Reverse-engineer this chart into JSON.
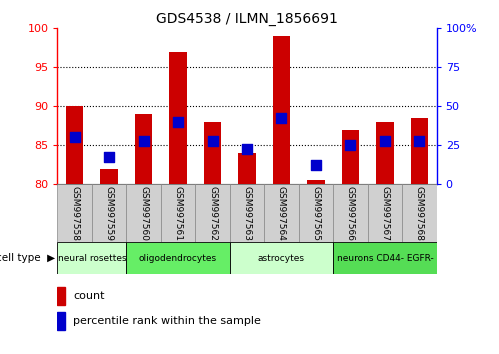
{
  "title": "GDS4538 / ILMN_1856691",
  "samples": [
    "GSM997558",
    "GSM997559",
    "GSM997560",
    "GSM997561",
    "GSM997562",
    "GSM997563",
    "GSM997564",
    "GSM997565",
    "GSM997566",
    "GSM997567",
    "GSM997568"
  ],
  "count_values": [
    90,
    82,
    89,
    97,
    88,
    84,
    99,
    80.5,
    87,
    88,
    88.5
  ],
  "percentile_values": [
    86,
    83.5,
    85.5,
    88,
    85.5,
    84.5,
    88.5,
    82.5,
    85,
    85.5,
    85.5
  ],
  "ylim": [
    80,
    100
  ],
  "y2lim": [
    0,
    100
  ],
  "yticks": [
    80,
    85,
    90,
    95,
    100
  ],
  "y2ticks": [
    0,
    25,
    50,
    75,
    100
  ],
  "y2ticklabels": [
    "0",
    "25",
    "50",
    "75",
    "100%"
  ],
  "bar_color": "#cc0000",
  "dot_color": "#0000cc",
  "bar_width": 0.5,
  "dot_size": 45,
  "groups": [
    {
      "label": "neural rosettes",
      "indices": [
        0,
        1
      ],
      "color": "#ccffcc"
    },
    {
      "label": "oligodendrocytes",
      "indices": [
        2,
        3,
        4
      ],
      "color": "#66ee66"
    },
    {
      "label": "astrocytes",
      "indices": [
        5,
        6,
        7
      ],
      "color": "#ccffcc"
    },
    {
      "label": "neurons CD44- EGFR-",
      "indices": [
        8,
        9,
        10
      ],
      "color": "#55dd55"
    }
  ],
  "legend_count_label": "count",
  "legend_pct_label": "percentile rank within the sample",
  "cell_type_label": "cell type",
  "background_color": "#ffffff",
  "dotted_line_y": [
    85,
    90,
    95
  ],
  "gray_box_color": "#d0d0d0",
  "box_edge_color": "#888888"
}
